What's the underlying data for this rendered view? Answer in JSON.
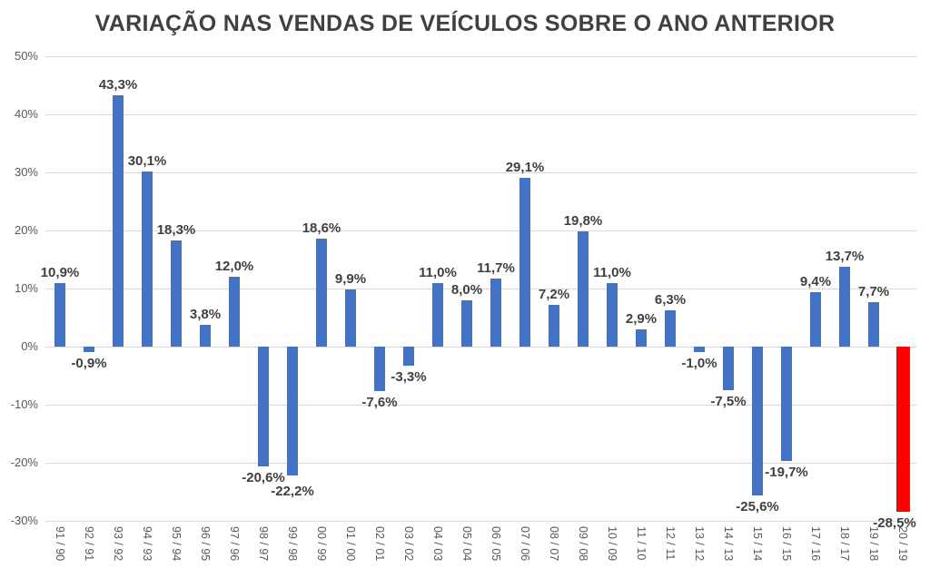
{
  "chart_data": {
    "type": "bar",
    "title": "VARIAÇÃO NAS VENDAS DE VEÍCULOS SOBRE O ANO ANTERIOR",
    "categories": [
      "91 / 90",
      "92 / 91",
      "93 / 92",
      "94 / 93",
      "95 / 94",
      "96 / 95",
      "97 / 96",
      "98 / 97",
      "99 / 98",
      "00 / 99",
      "01 / 00",
      "02 / 01",
      "03 / 02",
      "04 / 03",
      "05 / 04",
      "06 / 05",
      "07 / 06",
      "08 / 07",
      "09 / 08",
      "10 / 09",
      "11 / 10",
      "12 / 11",
      "13 / 12",
      "14 / 13",
      "15 / 14",
      "16 / 15",
      "17 / 16",
      "18 / 17",
      "19 / 18",
      "20 / 19"
    ],
    "values": [
      10.9,
      -0.9,
      43.3,
      30.1,
      18.3,
      3.8,
      12.0,
      -20.6,
      -22.2,
      18.6,
      9.9,
      -7.6,
      -3.3,
      11.0,
      8.0,
      11.7,
      29.1,
      7.2,
      19.8,
      11.0,
      2.9,
      6.3,
      -1.0,
      -7.5,
      -25.6,
      -19.7,
      9.4,
      13.7,
      7.7,
      -28.5
    ],
    "value_labels": [
      "10,9%",
      "-0,9%",
      "43,3%",
      "30,1%",
      "18,3%",
      "3,8%",
      "12,0%",
      "-20,6%",
      "-22,2%",
      "18,6%",
      "9,9%",
      "-7,6%",
      "-3,3%",
      "11,0%",
      "8,0%",
      "11,7%",
      "29,1%",
      "7,2%",
      "19,8%",
      "11,0%",
      "2,9%",
      "6,3%",
      "-1,0%",
      "-7,5%",
      "-25,6%",
      "-19,7%",
      "9,4%",
      "13,7%",
      "7,7%",
      "-28,5%"
    ],
    "xlabel": "",
    "ylabel": "",
    "ylim": [
      -30,
      50
    ],
    "ytick_step": 10,
    "ytick_labels": [
      "50%",
      "40%",
      "30%",
      "20%",
      "10%",
      "0%",
      "-10%",
      "-20%",
      "-30%"
    ],
    "grid": true,
    "legend": "none",
    "bar_color": "#4472C4",
    "highlight_color": "#FF0000",
    "highlight_category": "20 / 19",
    "highlight_index": 29,
    "label_color": "#404040",
    "axis_label_color": "#595959",
    "gridline_color": "#D9D9D9"
  }
}
